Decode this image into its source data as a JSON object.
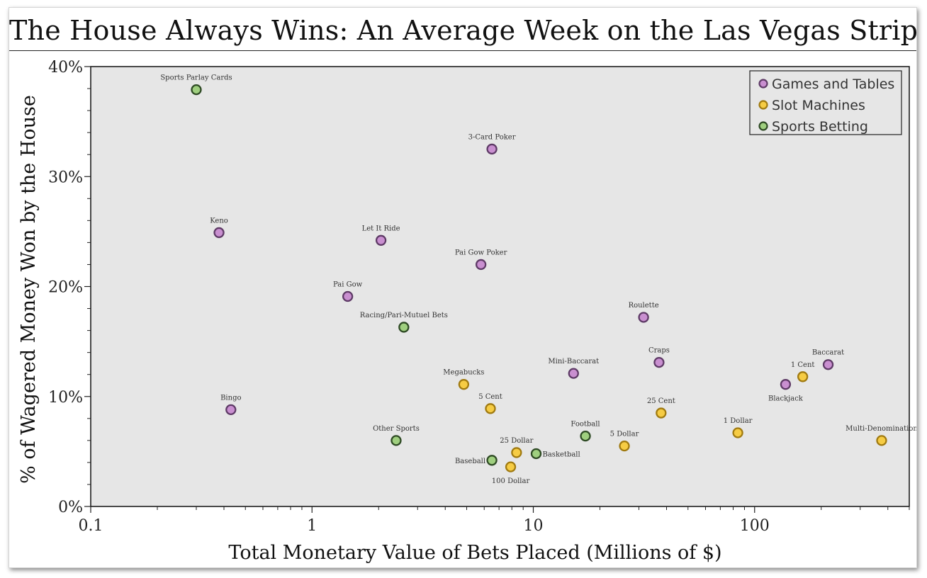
{
  "title": "The House Always Wins: An Average Week on the Las Vegas Strip",
  "chart_data": {
    "type": "scatter",
    "title": "The House Always Wins: An Average Week on the Las Vegas Strip",
    "xlabel": "Total Monetary Value of Bets Placed (Millions of $)",
    "ylabel": "% of Wagered Money Won by the House",
    "x_scale": "log",
    "xlim": [
      0.1,
      500
    ],
    "ylim": [
      0,
      40
    ],
    "x_ticks": [
      {
        "value": 0.1,
        "label": "0.1"
      },
      {
        "value": 1,
        "label": "1"
      },
      {
        "value": 10,
        "label": "10"
      },
      {
        "value": 100,
        "label": "100"
      }
    ],
    "y_ticks": [
      {
        "value": 0,
        "label": "0%"
      },
      {
        "value": 10,
        "label": "10%"
      },
      {
        "value": 20,
        "label": "20%"
      },
      {
        "value": 30,
        "label": "30%"
      },
      {
        "value": 40,
        "label": "40%"
      }
    ],
    "grid": false,
    "legend_position": "top-right",
    "series": [
      {
        "name": "Games and Tables",
        "fill": "#c98fd0",
        "stroke": "#5e3a66",
        "points": [
          {
            "label": "3-Card Poker",
            "x": 6.5,
            "y": 32.5,
            "pos": "above"
          },
          {
            "label": "Keno",
            "x": 0.38,
            "y": 24.9,
            "pos": "above"
          },
          {
            "label": "Let It Ride",
            "x": 2.05,
            "y": 24.2,
            "pos": "above"
          },
          {
            "label": "Pai Gow Poker",
            "x": 5.8,
            "y": 22.0,
            "pos": "above"
          },
          {
            "label": "Pai Gow",
            "x": 1.45,
            "y": 19.1,
            "pos": "above"
          },
          {
            "label": "Roulette",
            "x": 31.5,
            "y": 17.2,
            "pos": "above"
          },
          {
            "label": "Craps",
            "x": 37.0,
            "y": 13.1,
            "pos": "above"
          },
          {
            "label": "Baccarat",
            "x": 215,
            "y": 12.9,
            "pos": "above"
          },
          {
            "label": "Mini-Baccarat",
            "x": 15.2,
            "y": 12.1,
            "pos": "above"
          },
          {
            "label": "Blackjack",
            "x": 138,
            "y": 11.1,
            "pos": "below"
          },
          {
            "label": "Bingo",
            "x": 0.43,
            "y": 8.8,
            "pos": "above"
          }
        ]
      },
      {
        "name": "Slot Machines",
        "fill": "#f6cc44",
        "stroke": "#a07a10",
        "points": [
          {
            "label": "1 Cent",
            "x": 165,
            "y": 11.8,
            "pos": "above"
          },
          {
            "label": "Megabucks",
            "x": 4.85,
            "y": 11.1,
            "pos": "above"
          },
          {
            "label": "5 Cent",
            "x": 6.4,
            "y": 8.9,
            "pos": "above"
          },
          {
            "label": "25 Cent",
            "x": 37.8,
            "y": 8.5,
            "pos": "above"
          },
          {
            "label": "1 Dollar",
            "x": 84,
            "y": 6.7,
            "pos": "above"
          },
          {
            "label": "Multi-Denomination",
            "x": 375,
            "y": 6.0,
            "pos": "above"
          },
          {
            "label": "5 Dollar",
            "x": 25.8,
            "y": 5.5,
            "pos": "above"
          },
          {
            "label": "25 Dollar",
            "x": 8.4,
            "y": 4.9,
            "pos": "above"
          },
          {
            "label": "100 Dollar",
            "x": 7.9,
            "y": 3.6,
            "pos": "below"
          }
        ]
      },
      {
        "name": "Sports Betting",
        "fill": "#9fcf7f",
        "stroke": "#2e4a24",
        "points": [
          {
            "label": "Sports Parlay Cards",
            "x": 0.3,
            "y": 37.9,
            "pos": "above"
          },
          {
            "label": "Racing/Pari-Mutuel Bets",
            "x": 2.6,
            "y": 16.3,
            "pos": "above"
          },
          {
            "label": "Football",
            "x": 17.2,
            "y": 6.4,
            "pos": "above"
          },
          {
            "label": "Other Sports",
            "x": 2.4,
            "y": 6.0,
            "pos": "above"
          },
          {
            "label": "Basketball",
            "x": 10.3,
            "y": 4.8,
            "pos": "right"
          },
          {
            "label": "Baseball",
            "x": 6.5,
            "y": 4.2,
            "pos": "left"
          }
        ]
      }
    ]
  }
}
